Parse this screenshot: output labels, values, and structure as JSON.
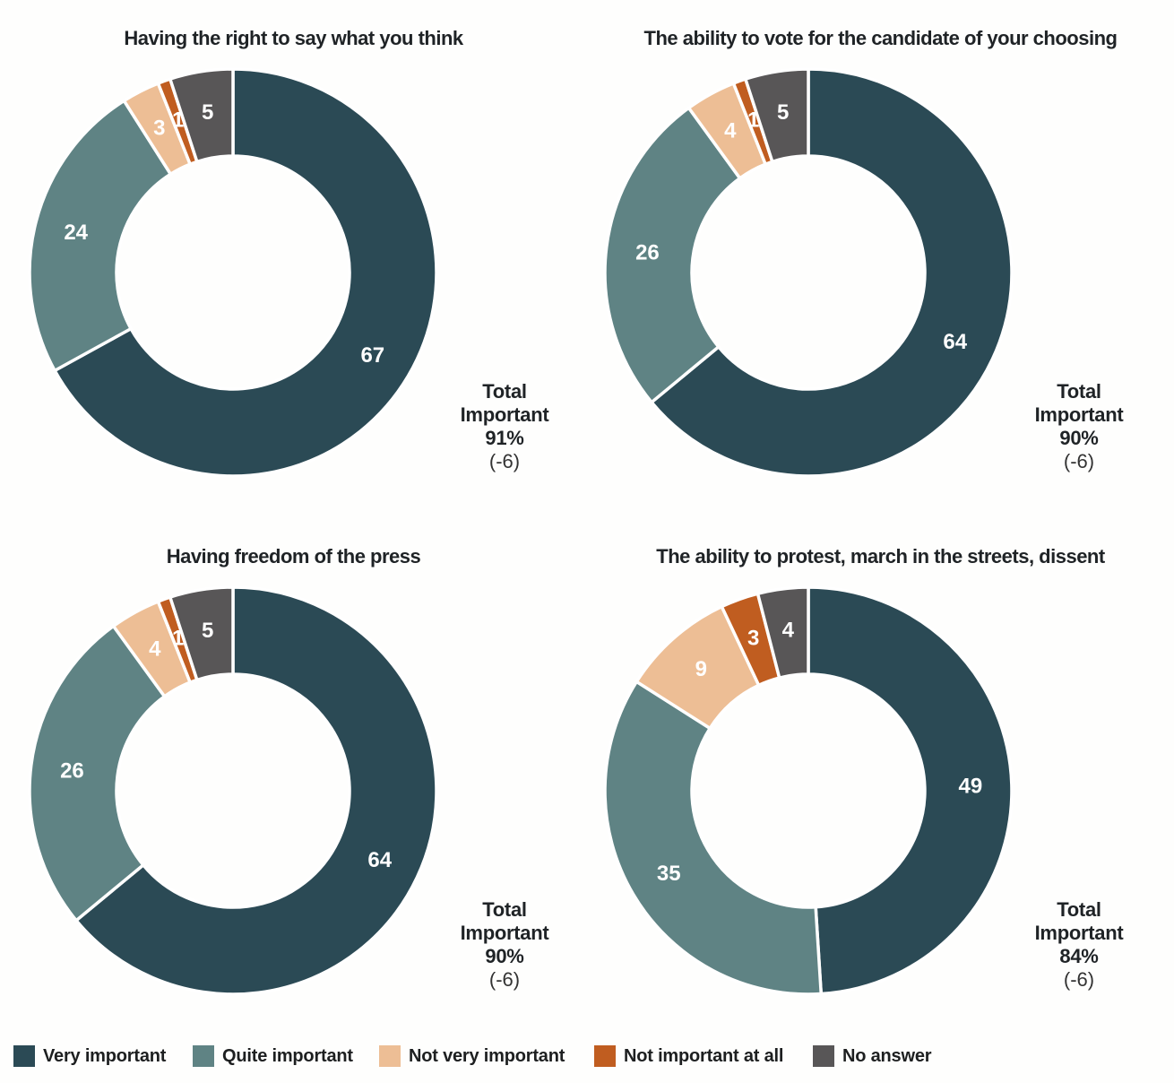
{
  "legend": {
    "items": [
      {
        "label": "Very important",
        "color": "#2b4a55"
      },
      {
        "label": "Quite important",
        "color": "#5f8384"
      },
      {
        "label": "Not very important",
        "color": "#edbe95"
      },
      {
        "label": "Not important at all",
        "color": "#c05d20"
      },
      {
        "label": "No answer",
        "color": "#585657"
      }
    ]
  },
  "chart_data": [
    {
      "type": "donut",
      "title": "Having the right to say what you think",
      "categories": [
        "Very important",
        "Quite important",
        "Not very important",
        "Not important at all",
        "No answer"
      ],
      "values": [
        67,
        24,
        3,
        1,
        5
      ],
      "annotation": {
        "lines": [
          "Total",
          "Important",
          "91%"
        ],
        "note": "(-6)"
      },
      "start_angle_deg": 0,
      "direction": "clockwise",
      "labels": "values-shown-on-slices"
    },
    {
      "type": "donut",
      "title": "The ability to vote for the candidate of your choosing",
      "categories": [
        "Very important",
        "Quite important",
        "Not very important",
        "Not important at all",
        "No answer"
      ],
      "values": [
        64,
        26,
        4,
        1,
        5
      ],
      "annotation": {
        "lines": [
          "Total",
          "Important",
          "90%"
        ],
        "note": "(-6)"
      },
      "start_angle_deg": 0,
      "direction": "clockwise",
      "labels": "values-shown-on-slices"
    },
    {
      "type": "donut",
      "title": "Having freedom of the press",
      "categories": [
        "Very important",
        "Quite important",
        "Not very important",
        "Not important at all",
        "No answer"
      ],
      "values": [
        64,
        26,
        4,
        1,
        5
      ],
      "annotation": {
        "lines": [
          "Total",
          "Important",
          "90%"
        ],
        "note": "(-6)"
      },
      "start_angle_deg": 0,
      "direction": "clockwise",
      "labels": "values-shown-on-slices"
    },
    {
      "type": "donut",
      "title": "The ability to protest, march in the streets, dissent",
      "categories": [
        "Very important",
        "Quite important",
        "Not very important",
        "Not important at all",
        "No answer"
      ],
      "values": [
        49,
        35,
        9,
        3,
        4
      ],
      "annotation": {
        "lines": [
          "Total",
          "Important",
          "84%"
        ],
        "note": "(-6)"
      },
      "start_angle_deg": 0,
      "direction": "clockwise",
      "labels": "values-shown-on-slices"
    }
  ]
}
